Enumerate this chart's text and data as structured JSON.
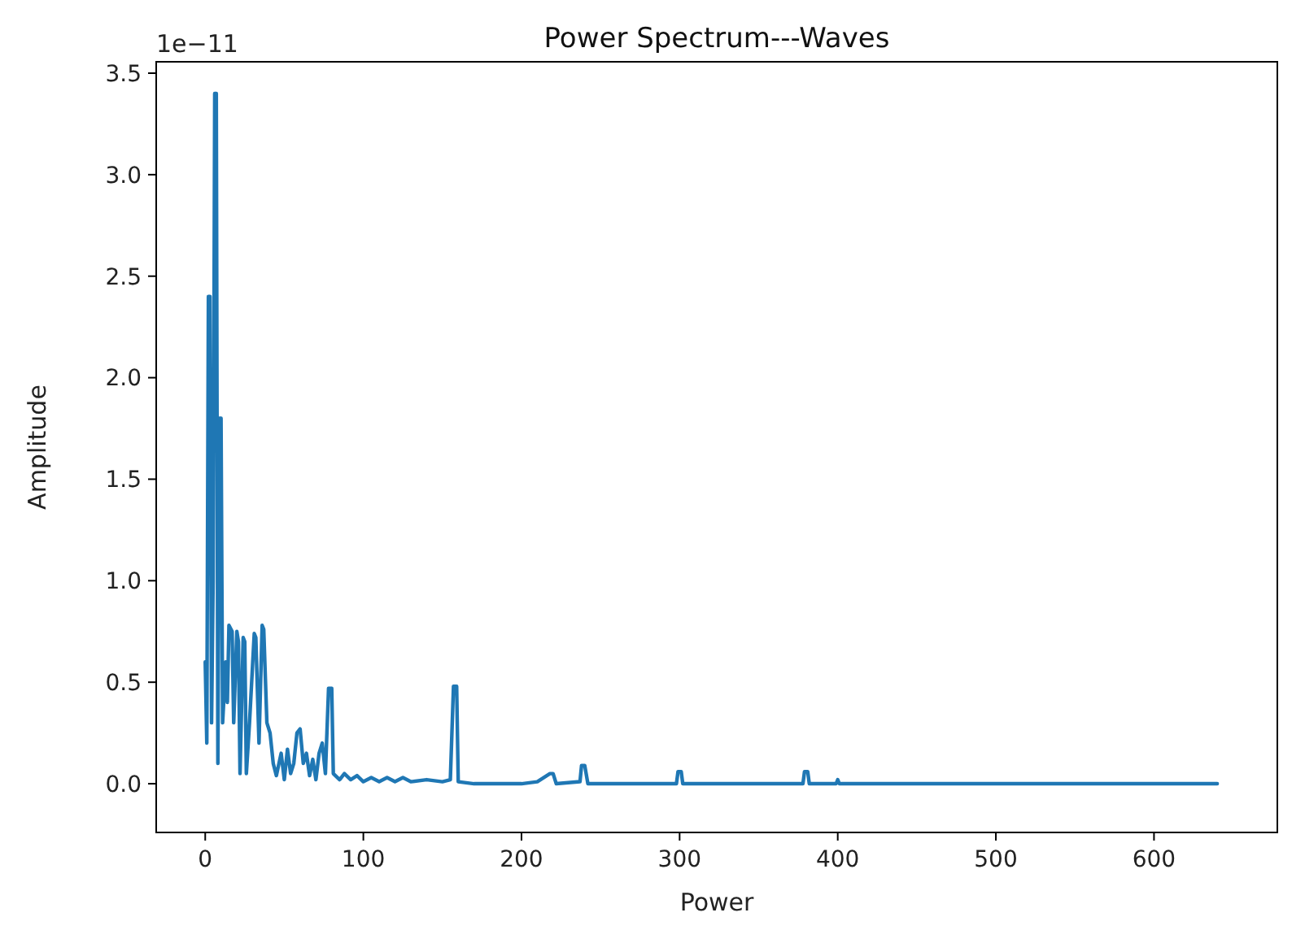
{
  "chart_data": {
    "type": "line",
    "title": "Power Spectrum---Waves",
    "xlabel": "Power",
    "ylabel": "Amplitude",
    "annotations": [
      "1e−11"
    ],
    "x": [
      0,
      1,
      2,
      3,
      4,
      5,
      6,
      7,
      8,
      9,
      10,
      11,
      13,
      14,
      15,
      17,
      18,
      20,
      21,
      22,
      24,
      25,
      26,
      28,
      31,
      32,
      34,
      36,
      37,
      39,
      41,
      43,
      45,
      48,
      50,
      52,
      54,
      56,
      58,
      60,
      62,
      64,
      66,
      68,
      70,
      72,
      74,
      76,
      78,
      80,
      81,
      85,
      88,
      92,
      96,
      100,
      105,
      110,
      115,
      120,
      125,
      130,
      140,
      150,
      155,
      157,
      159,
      160,
      170,
      200,
      210,
      218,
      220,
      222,
      237,
      238,
      240,
      242,
      298,
      299,
      301,
      302,
      378,
      379,
      381,
      382,
      399,
      400,
      401,
      640
    ],
    "series": [
      {
        "color": "#1f77b4",
        "values": [
          0.6,
          0.2,
          2.4,
          2.4,
          0.3,
          1.0,
          3.4,
          3.4,
          0.1,
          1.8,
          1.8,
          0.3,
          0.6,
          0.4,
          0.78,
          0.75,
          0.3,
          0.75,
          0.7,
          0.05,
          0.72,
          0.7,
          0.05,
          0.3,
          0.74,
          0.72,
          0.2,
          0.78,
          0.76,
          0.3,
          0.25,
          0.1,
          0.04,
          0.15,
          0.02,
          0.17,
          0.05,
          0.1,
          0.25,
          0.27,
          0.1,
          0.15,
          0.04,
          0.12,
          0.02,
          0.15,
          0.2,
          0.05,
          0.47,
          0.47,
          0.05,
          0.02,
          0.05,
          0.02,
          0.04,
          0.01,
          0.03,
          0.01,
          0.03,
          0.01,
          0.03,
          0.01,
          0.02,
          0.01,
          0.02,
          0.48,
          0.48,
          0.01,
          0,
          0,
          0.01,
          0.05,
          0.05,
          0,
          0.01,
          0.09,
          0.09,
          0,
          0,
          0.06,
          0.06,
          0,
          0,
          0.06,
          0.06,
          0,
          0,
          0.02,
          0,
          0
        ]
      }
    ],
    "xlim": [
      -31,
      678
    ],
    "xticks": [
      0,
      100,
      200,
      300,
      400,
      500,
      600
    ],
    "ylim": [
      -0.24,
      3.556
    ],
    "yticks": [
      {
        "value": 0,
        "label": "0.0"
      },
      {
        "value": 0.5,
        "label": "0.5"
      },
      {
        "value": 1,
        "label": "1.0"
      },
      {
        "value": 1.5,
        "label": "1.5"
      },
      {
        "value": 2,
        "label": "2.0"
      },
      {
        "value": 2.5,
        "label": "2.5"
      },
      {
        "value": 3,
        "label": "3.0"
      },
      {
        "value": 3.5,
        "label": "3.5"
      }
    ],
    "grid": false
  }
}
